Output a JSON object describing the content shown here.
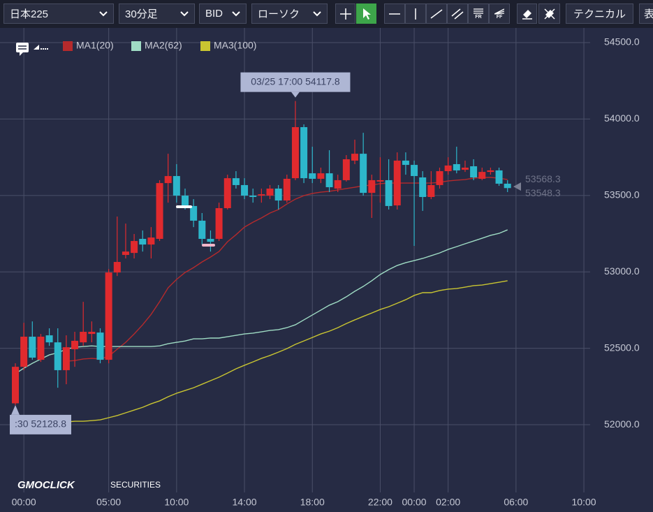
{
  "toolbar": {
    "symbol": "日本225",
    "interval": "30分足",
    "price_type": "BID",
    "chart_style": "ローソク",
    "fr": "FR",
    "ff": "FF",
    "technical": "テクニカル",
    "more": "表"
  },
  "chart_data": {
    "type": "candlestick",
    "categories": [
      null,
      "00:00",
      null,
      null,
      null,
      null,
      null,
      null,
      null,
      null,
      null,
      "05:00",
      null,
      null,
      null,
      null,
      null,
      null,
      null,
      "10:00",
      null,
      null,
      null,
      null,
      null,
      null,
      null,
      "14:00",
      null,
      null,
      null,
      null,
      null,
      null,
      null,
      "18:00",
      null,
      null,
      null,
      null,
      null,
      null,
      null,
      "22:00",
      null,
      null,
      null,
      "00:00",
      null,
      null,
      null,
      "02:00",
      null,
      null,
      null,
      null,
      null,
      null,
      null,
      "06:00",
      null,
      null,
      null,
      null,
      null,
      null,
      null,
      "10:00",
      null
    ],
    "open": [
      52140,
      52379,
      52576,
      52425,
      52585,
      52539,
      52357,
      52494,
      52539,
      52594,
      52603,
      52425,
      52996,
      53111,
      53124,
      53216,
      53179,
      53216,
      53581,
      53627,
      53499,
      53431,
      53335,
      53216,
      53216,
      53417,
      53613,
      53568,
      53499,
      53499,
      53499,
      53545,
      53467,
      53613,
      53947,
      53645,
      53609,
      53645,
      53545,
      53600,
      53728,
      53773,
      53517,
      53591,
      53600,
      53435,
      53728,
      53700,
      53618,
      53490,
      53568,
      53659,
      53705,
      53668,
      53691,
      53609,
      53654,
      53664,
      53577,
      null,
      null,
      null,
      null,
      null,
      null,
      null,
      null,
      null,
      null
    ],
    "high": [
      52402,
      52667,
      52676,
      52594,
      52631,
      52631,
      52585,
      52608,
      52804,
      52676,
      52631,
      53019,
      53362,
      53316,
      53248,
      53271,
      53293,
      53600,
      53773,
      53705,
      53545,
      53476,
      53385,
      53271,
      53453,
      53636,
      53659,
      53613,
      53545,
      53545,
      53568,
      53568,
      53636,
      54117.8,
      53965,
      53819,
      53682,
      53796,
      53636,
      53764,
      53865,
      53910,
      53636,
      53750,
      53737,
      53782,
      53782,
      53728,
      53659,
      53659,
      53682,
      53750,
      53819,
      53728,
      53737,
      53682,
      53682,
      53682,
      53600,
      null,
      null,
      null,
      null,
      null,
      null,
      null,
      null,
      null,
      null
    ],
    "low": [
      52128.8,
      52357,
      52425,
      52411,
      52516,
      52242,
      52265,
      52379,
      52516,
      52539,
      52402,
      52402,
      52973,
      53088,
      53088,
      53133,
      53088,
      53202,
      53453,
      53453,
      53408,
      53293,
      53179,
      53133,
      53202,
      53408,
      53545,
      53476,
      53453,
      53453,
      53476,
      53408,
      53453,
      53600,
      53581,
      53581,
      53581,
      53522,
      53522,
      53591,
      53705,
      53499,
      53353,
      53453,
      53408,
      53408,
      53636,
      53170,
      53399,
      53476,
      53545,
      53636,
      53645,
      53654,
      53600,
      53600,
      53636,
      53563,
      53522,
      null,
      null,
      null,
      null,
      null,
      null,
      null,
      null,
      null,
      null
    ],
    "close": [
      52379,
      52576,
      52439,
      52576,
      52539,
      52357,
      52507,
      52549,
      52608,
      52608,
      52425,
      52996,
      53065,
      53133,
      53202,
      53179,
      53225,
      53581,
      53627,
      53499,
      53431,
      53335,
      53216,
      53197,
      53417,
      53613,
      53568,
      53499,
      53490,
      53508,
      53545,
      53467,
      53609,
      53947,
      53613,
      53609,
      53645,
      53554,
      53600,
      53737,
      53773,
      53517,
      53600,
      53600,
      53431,
      53728,
      53700,
      53627,
      53490,
      53568,
      53659,
      53696,
      53664,
      53682,
      53618,
      53654,
      53664,
      53577,
      53548.3,
      null,
      null,
      null,
      null,
      null,
      null,
      null,
      null,
      null,
      null
    ],
    "up_color": "#e02a2e",
    "down_color": "#2db7cb",
    "series": [
      {
        "name": "MA1(20)",
        "color": "#b52a2c",
        "values": [
          null,
          null,
          null,
          null,
          null,
          null,
          52416,
          52420,
          52430,
          52434,
          52430,
          52448,
          52494,
          52539,
          52594,
          52654,
          52722,
          52805,
          52896,
          52951,
          52996,
          53028,
          53065,
          53097,
          53133,
          53197,
          53243,
          53293,
          53325,
          53353,
          53385,
          53408,
          53444,
          53476,
          53499,
          53513,
          53522,
          53527,
          53536,
          53545,
          53554,
          53563,
          53568,
          53577,
          53581,
          53581,
          53581,
          53581,
          53581,
          53581,
          53586,
          53595,
          53600,
          53604,
          53613,
          53618,
          53618,
          53613,
          53604,
          null,
          null,
          null,
          null,
          null,
          null,
          null,
          null,
          null,
          null
        ]
      },
      {
        "name": "MA2(62)",
        "color": "#9fdcc4",
        "values": [
          52334,
          52370,
          52402,
          52430,
          52457,
          52471,
          52494,
          52507,
          52512,
          52516,
          52512,
          52512,
          52512,
          52512,
          52512,
          52512,
          52512,
          52516,
          52530,
          52539,
          52548,
          52562,
          52562,
          52567,
          52567,
          52576,
          52585,
          52594,
          52599,
          52608,
          52617,
          52622,
          52635,
          52654,
          52686,
          52718,
          52750,
          52782,
          52805,
          52837,
          52873,
          52905,
          52942,
          52983,
          53015,
          53042,
          53060,
          53074,
          53088,
          53106,
          53124,
          53147,
          53165,
          53184,
          53202,
          53220,
          53239,
          53252,
          53275,
          null,
          null,
          null,
          null,
          null,
          null,
          null,
          null,
          null,
          null
        ]
      },
      {
        "name": "MA3(100)",
        "color": "#c9c531",
        "values": [
          52014,
          52014,
          52014,
          52014,
          52014,
          52018,
          52018,
          52023,
          52023,
          52027,
          52032,
          52046,
          52060,
          52078,
          52096,
          52114,
          52137,
          52156,
          52183,
          52206,
          52224,
          52242,
          52265,
          52288,
          52311,
          52338,
          52366,
          52389,
          52411,
          52434,
          52453,
          52475,
          52498,
          52526,
          52548,
          52571,
          52594,
          52612,
          52635,
          52662,
          52686,
          52709,
          52731,
          52754,
          52772,
          52795,
          52818,
          52846,
          52864,
          52864,
          52878,
          52887,
          52891,
          52900,
          52910,
          52914,
          52923,
          52932,
          52942,
          null,
          null,
          null,
          null,
          null,
          null,
          null,
          null,
          null,
          null
        ]
      }
    ],
    "ylim": [
      51557,
      54596
    ],
    "yticks": [
      {
        "value": 52000,
        "label": "52000.0"
      },
      {
        "value": 52500,
        "label": "52500.0"
      },
      {
        "value": 53000,
        "label": "53000.0"
      },
      {
        "value": 53500,
        "label": "53500.0"
      },
      {
        "value": 54000,
        "label": "54000.0"
      },
      {
        "value": 54500,
        "label": "54500.0"
      }
    ],
    "grid": true,
    "annotations": {
      "high": "03/25 17:00 54117.8",
      "low": ":30 52128.8"
    },
    "price_tags": [
      53568.3,
      53548.3
    ],
    "watermark": "GMOCLICK",
    "watermark_sub": "SECURITIES"
  }
}
